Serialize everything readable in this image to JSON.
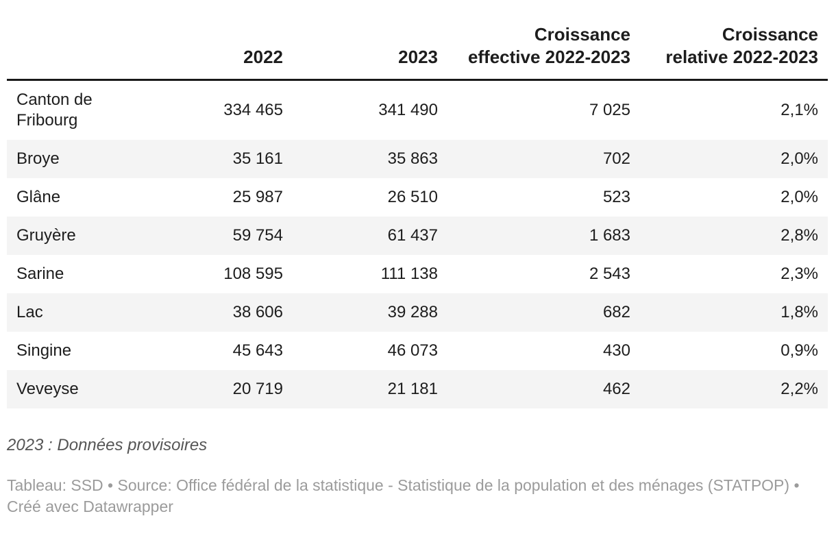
{
  "colors": {
    "text": "#1d1d1d",
    "header_border": "#191919",
    "row_stripe": "#f4f4f4",
    "notes_text": "#555555",
    "byline_text": "#9b9b9b",
    "background": "#ffffff"
  },
  "table": {
    "columns": [
      "",
      "2022",
      "2023",
      "Croissance effective 2022-2023",
      "Croissance relative 2022-2023"
    ],
    "rows": [
      {
        "label": "Canton de Fribourg",
        "cells": [
          "334 465",
          "341 490",
          "7 025",
          "2,1%"
        ]
      },
      {
        "label": "Broye",
        "cells": [
          "35 161",
          "35 863",
          "702",
          "2,0%"
        ]
      },
      {
        "label": "Glâne",
        "cells": [
          "25 987",
          "26 510",
          "523",
          "2,0%"
        ]
      },
      {
        "label": "Gruyère",
        "cells": [
          "59 754",
          "61 437",
          "1 683",
          "2,8%"
        ]
      },
      {
        "label": "Sarine",
        "cells": [
          "108 595",
          "111 138",
          "2 543",
          "2,3%"
        ]
      },
      {
        "label": "Lac",
        "cells": [
          "38 606",
          "39 288",
          "682",
          "1,8%"
        ]
      },
      {
        "label": "Singine",
        "cells": [
          "45 643",
          "46 073",
          "430",
          "0,9%"
        ]
      },
      {
        "label": "Veveyse",
        "cells": [
          "20 719",
          "21 181",
          "462",
          "2,2%"
        ]
      }
    ]
  },
  "notes": "2023 : Données provisoires",
  "byline": "Tableau: SSD • Source: Office fédéral de la statistique - Statistique de la population et des ménages (STATPOP) • Créé avec Datawrapper",
  "chart_data": {
    "type": "table",
    "title": "",
    "columns": [
      "",
      "2022",
      "2023",
      "Croissance effective 2022-2023",
      "Croissance relative 2022-2023"
    ],
    "rows": [
      {
        "label": "Canton de Fribourg",
        "pop_2022": 334465,
        "pop_2023": 341490,
        "croissance_effective": 7025,
        "croissance_relative_pct": 2.1
      },
      {
        "label": "Broye",
        "pop_2022": 35161,
        "pop_2023": 35863,
        "croissance_effective": 702,
        "croissance_relative_pct": 2.0
      },
      {
        "label": "Glâne",
        "pop_2022": 25987,
        "pop_2023": 26510,
        "croissance_effective": 523,
        "croissance_relative_pct": 2.0
      },
      {
        "label": "Gruyère",
        "pop_2022": 59754,
        "pop_2023": 61437,
        "croissance_effective": 1683,
        "croissance_relative_pct": 2.8
      },
      {
        "label": "Sarine",
        "pop_2022": 108595,
        "pop_2023": 111138,
        "croissance_effective": 2543,
        "croissance_relative_pct": 2.3
      },
      {
        "label": "Lac",
        "pop_2022": 38606,
        "pop_2023": 39288,
        "croissance_effective": 682,
        "croissance_relative_pct": 1.8
      },
      {
        "label": "Singine",
        "pop_2022": 45643,
        "pop_2023": 46073,
        "croissance_effective": 430,
        "croissance_relative_pct": 0.9
      },
      {
        "label": "Veveyse",
        "pop_2022": 20719,
        "pop_2023": 21181,
        "croissance_effective": 462,
        "croissance_relative_pct": 2.2
      }
    ],
    "layout": {
      "striped_rows": true,
      "header_align": "right",
      "value_align": "right",
      "label_align": "left"
    }
  }
}
